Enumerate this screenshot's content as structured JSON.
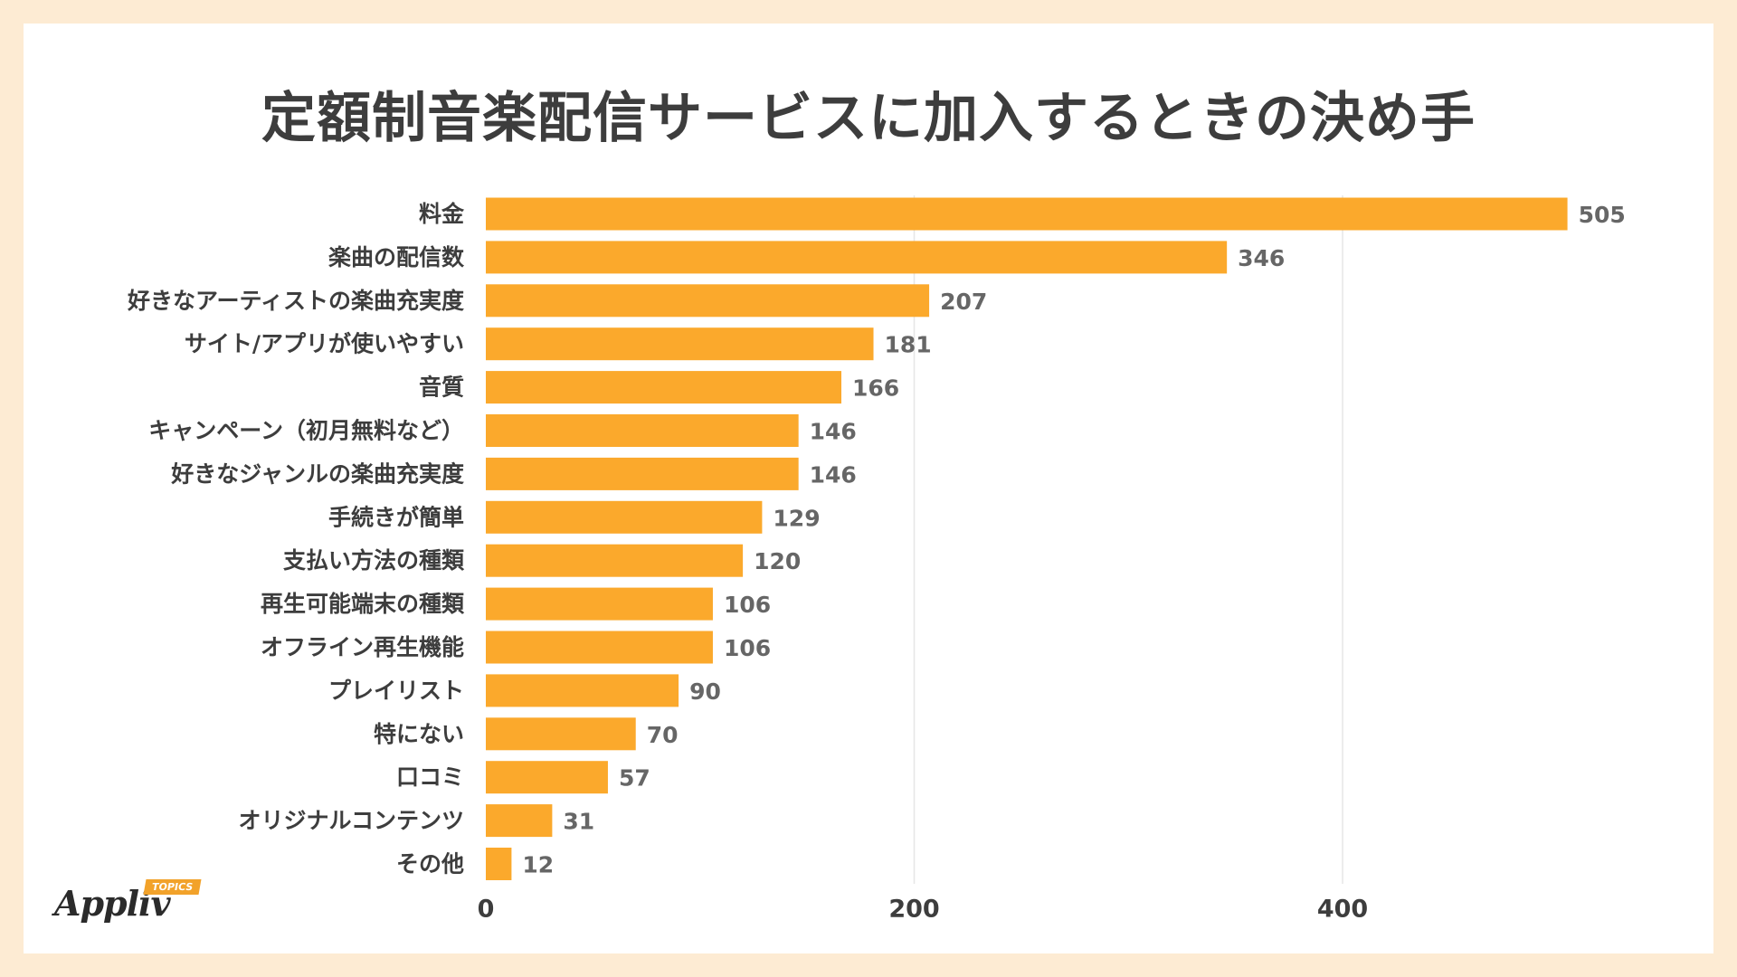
{
  "title": "定額制音楽配信サービスに加入するときの決め手",
  "chart_data": {
    "type": "bar",
    "orientation": "horizontal",
    "title": "定額制音楽配信サービスに加入するときの決め手",
    "categories": [
      "料金",
      "楽曲の配信数",
      "好きなアーティストの楽曲充実度",
      "サイト/アプリが使いやすい",
      "音質",
      "キャンペーン（初月無料など）",
      "好きなジャンルの楽曲充実度",
      "手続きが簡単",
      "支払い方法の種類",
      "再生可能端末の種類",
      "オフライン再生機能",
      "プレイリスト",
      "特にない",
      "口コミ",
      "オリジナルコンテンツ",
      "その他"
    ],
    "values": [
      505,
      346,
      207,
      181,
      166,
      146,
      146,
      129,
      120,
      106,
      106,
      90,
      70,
      57,
      31,
      12
    ],
    "value_labels": [
      "505",
      "346",
      "207",
      "181",
      "166",
      "146",
      "146",
      "129",
      "120",
      "106",
      "106",
      "90",
      "70",
      "57",
      "31",
      "12"
    ],
    "xlim": [
      0,
      560
    ],
    "xticks": [
      0,
      200,
      400
    ],
    "xtick_labels": [
      "0",
      "200",
      "400"
    ],
    "grid": true,
    "bar_color": "#fba92c",
    "xlabel": "",
    "ylabel": ""
  },
  "logo": {
    "text": "Appliv",
    "badge": "TOPICS"
  },
  "colors": {
    "background": "#fdebd3",
    "card": "#ffffff",
    "bar": "#fba92c",
    "text": "#3d3d3d",
    "value_text": "#666666",
    "grid": "#e6e6e6"
  }
}
